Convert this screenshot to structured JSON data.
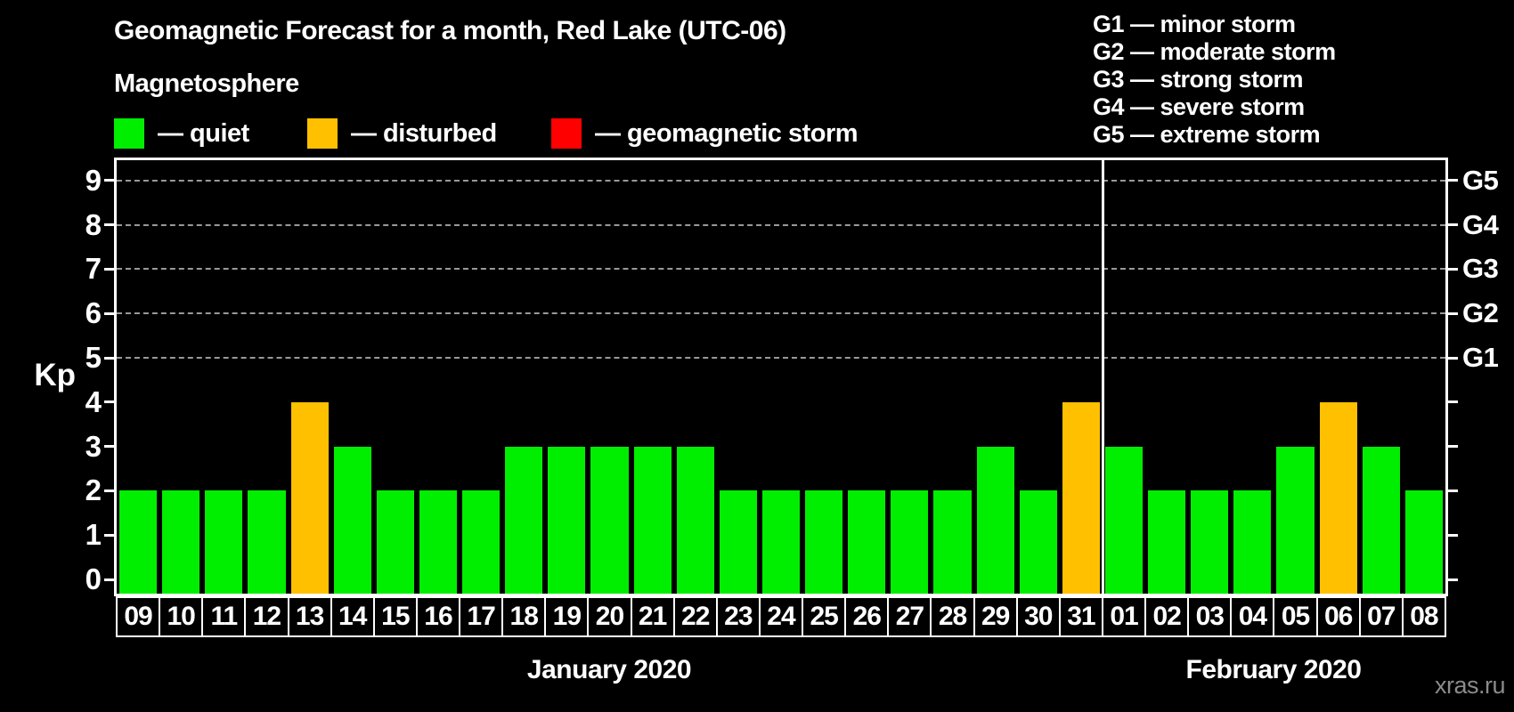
{
  "title": "Geomagnetic Forecast for a month, Red Lake (UTC-06)",
  "legend": {
    "title": "Magnetosphere",
    "items": [
      {
        "key": "quiet",
        "label": "— quiet",
        "color": "#00ee00"
      },
      {
        "key": "disturbed",
        "label": "— disturbed",
        "color": "#ffc000"
      },
      {
        "key": "storm",
        "label": "— geomagnetic storm",
        "color": "#ff0000"
      }
    ]
  },
  "g_scale_legend": [
    "G1 — minor storm",
    "G2 — moderate storm",
    "G3 — strong storm",
    "G4 — severe storm",
    "G5 — extreme storm"
  ],
  "watermark": "xras.ru",
  "chart_data": {
    "type": "bar",
    "title": "Geomagnetic Forecast for a month, Red Lake (UTC-06)",
    "ylabel": "Kp",
    "ylim": [
      0,
      9.4
    ],
    "yticks": [
      0,
      1,
      2,
      3,
      4,
      5,
      6,
      7,
      8,
      9
    ],
    "grid_levels_kp": [
      5,
      6,
      7,
      8,
      9
    ],
    "grid_on": true,
    "right_axis": [
      {
        "label": "G1",
        "kp": 5
      },
      {
        "label": "G2",
        "kp": 6
      },
      {
        "label": "G3",
        "kp": 7
      },
      {
        "label": "G4",
        "kp": 8
      },
      {
        "label": "G5",
        "kp": 9
      }
    ],
    "months": [
      {
        "label": "January 2020",
        "day_count": 23
      },
      {
        "label": "February 2020",
        "day_count": 8
      }
    ],
    "categories": [
      "09",
      "10",
      "11",
      "12",
      "13",
      "14",
      "15",
      "16",
      "17",
      "18",
      "19",
      "20",
      "21",
      "22",
      "23",
      "24",
      "25",
      "26",
      "27",
      "28",
      "29",
      "30",
      "31",
      "01",
      "02",
      "03",
      "04",
      "05",
      "06",
      "07",
      "08"
    ],
    "values": [
      2,
      2,
      2,
      2,
      4,
      3,
      2,
      2,
      2,
      3,
      3,
      3,
      3,
      3,
      2,
      2,
      2,
      2,
      2,
      2,
      3,
      2,
      4,
      3,
      2,
      2,
      2,
      3,
      4,
      3,
      2
    ],
    "statuses": [
      "quiet",
      "quiet",
      "quiet",
      "quiet",
      "disturbed",
      "quiet",
      "quiet",
      "quiet",
      "quiet",
      "quiet",
      "quiet",
      "quiet",
      "quiet",
      "quiet",
      "quiet",
      "quiet",
      "quiet",
      "quiet",
      "quiet",
      "quiet",
      "quiet",
      "quiet",
      "disturbed",
      "quiet",
      "quiet",
      "quiet",
      "quiet",
      "quiet",
      "disturbed",
      "quiet",
      "quiet"
    ],
    "series_colors": {
      "quiet": "#00ee00",
      "disturbed": "#ffc000",
      "storm": "#ff0000"
    },
    "legend_position": "top-left"
  }
}
